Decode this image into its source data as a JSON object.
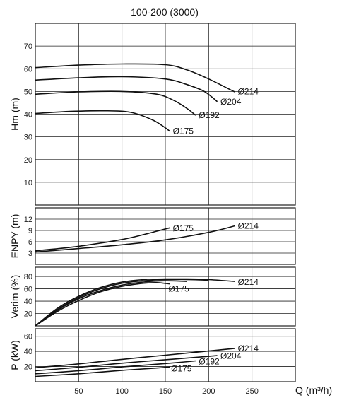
{
  "chart_data": {
    "title": "100-200 (3000)",
    "xlabel": "Q (m³/h)",
    "x_ticks": [
      50,
      100,
      150,
      200,
      250
    ],
    "xlim": [
      0,
      300
    ],
    "panels": [
      {
        "key": "head",
        "type": "line",
        "ylabel": "Hm (m)",
        "ylim": [
          0,
          80
        ],
        "y_ticks": [
          10,
          20,
          30,
          40,
          50,
          60,
          70
        ],
        "series": [
          {
            "name": "Ø214",
            "x": [
              0,
              50,
              100,
              150,
              175,
              200,
              230
            ],
            "y": [
              60.5,
              61.6,
              62.1,
              61.8,
              59.5,
              55.5,
              49.8
            ]
          },
          {
            "name": "Ø204",
            "x": [
              0,
              50,
              100,
              150,
              175,
              195,
              210
            ],
            "y": [
              55.0,
              56.0,
              56.5,
              55.5,
              53.0,
              50.0,
              45.5
            ]
          },
          {
            "name": "Ø192",
            "x": [
              0,
              50,
              100,
              140,
              160,
              175,
              185
            ],
            "y": [
              48.8,
              49.8,
              50.0,
              48.8,
              46.0,
              42.5,
              39.5
            ]
          },
          {
            "name": "Ø175",
            "x": [
              0,
              40,
              80,
              110,
              135,
              150,
              155
            ],
            "y": [
              40.3,
              41.2,
              41.5,
              40.8,
              37.5,
              34.0,
              32.5
            ]
          }
        ]
      },
      {
        "key": "npsh",
        "type": "line",
        "ylabel": "ENPY (m)",
        "ylim": [
          0,
          15
        ],
        "y_ticks": [
          3,
          6,
          9,
          12
        ],
        "series": [
          {
            "name": "Ø175",
            "x": [
              0,
              50,
              100,
              130,
              155
            ],
            "y": [
              3.6,
              4.8,
              6.6,
              8.2,
              9.7
            ]
          },
          {
            "name": "Ø214",
            "x": [
              0,
              50,
              100,
              150,
              200,
              230
            ],
            "y": [
              3.3,
              4.2,
              5.2,
              6.5,
              8.5,
              10.2
            ]
          }
        ]
      },
      {
        "key": "efficiency",
        "type": "line",
        "ylabel": "Verim (%)",
        "ylim": [
          0,
          95
        ],
        "y_ticks": [
          20,
          40,
          60,
          80
        ],
        "series": [
          {
            "name": "Ø214",
            "x": [
              0,
              25,
              50,
              75,
              100,
              125,
              150,
              175,
              200,
              230
            ],
            "y": [
              0,
              28,
              48,
              62,
              71,
              75,
              76,
              76,
              75,
              72
            ]
          },
          {
            "name": "Ø204",
            "x": [
              0,
              25,
              50,
              75,
              100,
              125,
              150,
              175,
              200
            ],
            "y": [
              0,
              26,
              46,
              60,
              69,
              73,
              75,
              75,
              74
            ]
          },
          {
            "name": "Ø192",
            "x": [
              0,
              25,
              50,
              75,
              100,
              125,
              150,
              175
            ],
            "y": [
              0,
              25,
              44,
              57,
              66,
              71,
              73,
              72
            ]
          },
          {
            "name": "Ø175",
            "x": [
              0,
              25,
              50,
              75,
              100,
              125,
              140,
              155
            ],
            "y": [
              0,
              23,
              41,
              55,
              64,
              69,
              70,
              68
            ]
          }
        ]
      },
      {
        "key": "power",
        "type": "line",
        "ylabel": "P (kW)",
        "ylim": [
          0,
          70
        ],
        "y_ticks": [
          20,
          40,
          60
        ],
        "series": [
          {
            "name": "Ø214",
            "x": [
              0,
              50,
              100,
              150,
              200,
              230
            ],
            "y": [
              18.5,
              23.5,
              29.5,
              35.0,
              40.5,
              44.0
            ]
          },
          {
            "name": "Ø204",
            "x": [
              0,
              50,
              100,
              150,
              200,
              210
            ],
            "y": [
              14.5,
              19.0,
              24.5,
              29.0,
              33.5,
              34.5
            ]
          },
          {
            "name": "Ø192",
            "x": [
              0,
              50,
              100,
              150,
              185
            ],
            "y": [
              10.5,
              14.5,
              19.5,
              24.0,
              27.5
            ]
          },
          {
            "name": "Ø175",
            "x": [
              0,
              50,
              100,
              140,
              155
            ],
            "y": [
              7.0,
              10.5,
              15.0,
              18.0,
              19.5
            ]
          }
        ]
      }
    ],
    "curve_labels": {
      "head": [
        {
          "text": "Ø214",
          "x": 232,
          "y": 50
        },
        {
          "text": "Ø204",
          "x": 212,
          "y": 45.5
        },
        {
          "text": "Ø192",
          "x": 187,
          "y": 39.5
        },
        {
          "text": "Ø175",
          "x": 157,
          "y": 32.5
        }
      ],
      "npsh": [
        {
          "text": "Ø175",
          "x": 157,
          "y": 9.6
        },
        {
          "text": "Ø214",
          "x": 232,
          "y": 10.2
        }
      ],
      "efficiency": [
        {
          "text": "Ø214",
          "x": 232,
          "y": 71
        },
        {
          "text": "Ø175",
          "x": 152,
          "y": 60
        }
      ],
      "power": [
        {
          "text": "Ø214",
          "x": 232,
          "y": 44
        },
        {
          "text": "Ø204",
          "x": 212,
          "y": 34
        },
        {
          "text": "Ø192",
          "x": 187,
          "y": 26.5
        },
        {
          "text": "Ø175",
          "x": 155,
          "y": 17.5
        }
      ]
    }
  }
}
